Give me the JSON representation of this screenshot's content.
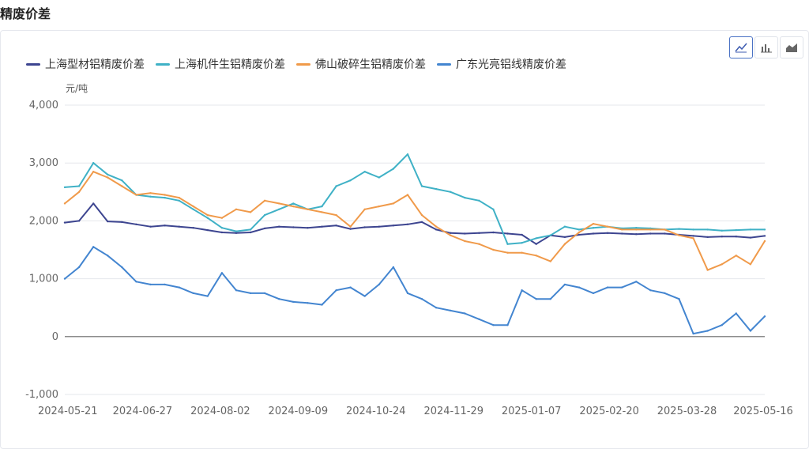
{
  "page": {
    "title": "精废价差"
  },
  "toolbar": {
    "buttons": [
      {
        "name": "line-chart-icon",
        "active": true
      },
      {
        "name": "bar-chart-icon",
        "active": false
      },
      {
        "name": "area-chart-icon",
        "active": false
      }
    ]
  },
  "chart_data": {
    "type": "line",
    "ylabel": "元/吨",
    "ylim": [
      -1000,
      4000
    ],
    "yticks": [
      "4,000",
      "3,000",
      "2,000",
      "1,000",
      "0",
      "-1,000"
    ],
    "ytick_values": [
      4000,
      3000,
      2000,
      1000,
      0,
      -1000
    ],
    "xtick_labels": [
      "2024-05-21",
      "2024-06-27",
      "2024-08-02",
      "2024-09-09",
      "2024-10-24",
      "2024-11-29",
      "2025-01-07",
      "2025-02-20",
      "2025-03-28",
      "2025-05-16"
    ],
    "grid": true,
    "legend_position": "top-left",
    "x": [
      "2024-05-21",
      "2024-05-28",
      "2024-06-04",
      "2024-06-11",
      "2024-06-18",
      "2024-06-27",
      "2024-07-04",
      "2024-07-11",
      "2024-07-18",
      "2024-07-25",
      "2024-08-02",
      "2024-08-09",
      "2024-08-16",
      "2024-08-23",
      "2024-08-30",
      "2024-09-09",
      "2024-09-16",
      "2024-09-23",
      "2024-09-30",
      "2024-10-10",
      "2024-10-17",
      "2024-10-24",
      "2024-10-31",
      "2024-11-07",
      "2024-11-14",
      "2024-11-21",
      "2024-11-29",
      "2024-12-06",
      "2024-12-13",
      "2024-12-20",
      "2024-12-27",
      "2025-01-07",
      "2025-01-14",
      "2025-01-21",
      "2025-01-28",
      "2025-02-07",
      "2025-02-14",
      "2025-02-20",
      "2025-02-27",
      "2025-03-06",
      "2025-03-13",
      "2025-03-20",
      "2025-03-28",
      "2025-04-04",
      "2025-04-11",
      "2025-04-18",
      "2025-04-25",
      "2025-05-02",
      "2025-05-09",
      "2025-05-16"
    ],
    "series": [
      {
        "name": "上海型材铝精废价差",
        "color": "#3d4590",
        "values": [
          1970,
          2000,
          2300,
          1990,
          1980,
          1940,
          1900,
          1920,
          1900,
          1880,
          1840,
          1800,
          1790,
          1800,
          1870,
          1900,
          1890,
          1880,
          1900,
          1920,
          1860,
          1890,
          1900,
          1920,
          1940,
          1980,
          1850,
          1790,
          1780,
          1790,
          1800,
          1780,
          1760,
          1600,
          1750,
          1720,
          1760,
          1780,
          1790,
          1780,
          1770,
          1780,
          1780,
          1760,
          1740,
          1720,
          1730,
          1730,
          1710,
          1740
        ]
      },
      {
        "name": "上海机件生铝精废价差",
        "color": "#3fb1c6",
        "values": [
          2580,
          2600,
          3000,
          2800,
          2700,
          2450,
          2420,
          2400,
          2350,
          2200,
          2050,
          1880,
          1820,
          1850,
          2100,
          2200,
          2300,
          2200,
          2250,
          2600,
          2700,
          2850,
          2750,
          2900,
          3150,
          2600,
          2550,
          2500,
          2400,
          2350,
          2200,
          1600,
          1620,
          1700,
          1750,
          1900,
          1850,
          1880,
          1900,
          1870,
          1880,
          1870,
          1850,
          1860,
          1850,
          1850,
          1830,
          1840,
          1850,
          1850
        ]
      },
      {
        "name": "佛山破碎生铝精废价差",
        "color": "#f09a4a",
        "values": [
          2300,
          2500,
          2850,
          2750,
          2600,
          2450,
          2480,
          2450,
          2400,
          2250,
          2100,
          2050,
          2200,
          2150,
          2350,
          2300,
          2250,
          2200,
          2150,
          2100,
          1900,
          2200,
          2250,
          2300,
          2450,
          2100,
          1900,
          1750,
          1650,
          1600,
          1500,
          1450,
          1450,
          1400,
          1300,
          1600,
          1800,
          1950,
          1900,
          1850,
          1850,
          1850,
          1850,
          1750,
          1700,
          1150,
          1250,
          1400,
          1250,
          1650
        ]
      },
      {
        "name": "广东光亮铝线精废价差",
        "color": "#4385d0",
        "values": [
          1000,
          1200,
          1550,
          1400,
          1200,
          950,
          900,
          900,
          850,
          750,
          700,
          1100,
          800,
          750,
          750,
          650,
          600,
          580,
          550,
          800,
          850,
          700,
          900,
          1200,
          750,
          650,
          500,
          450,
          400,
          300,
          200,
          200,
          800,
          650,
          650,
          900,
          850,
          750,
          850,
          850,
          950,
          800,
          750,
          650,
          50,
          100,
          200,
          400,
          100,
          350
        ]
      }
    ]
  }
}
